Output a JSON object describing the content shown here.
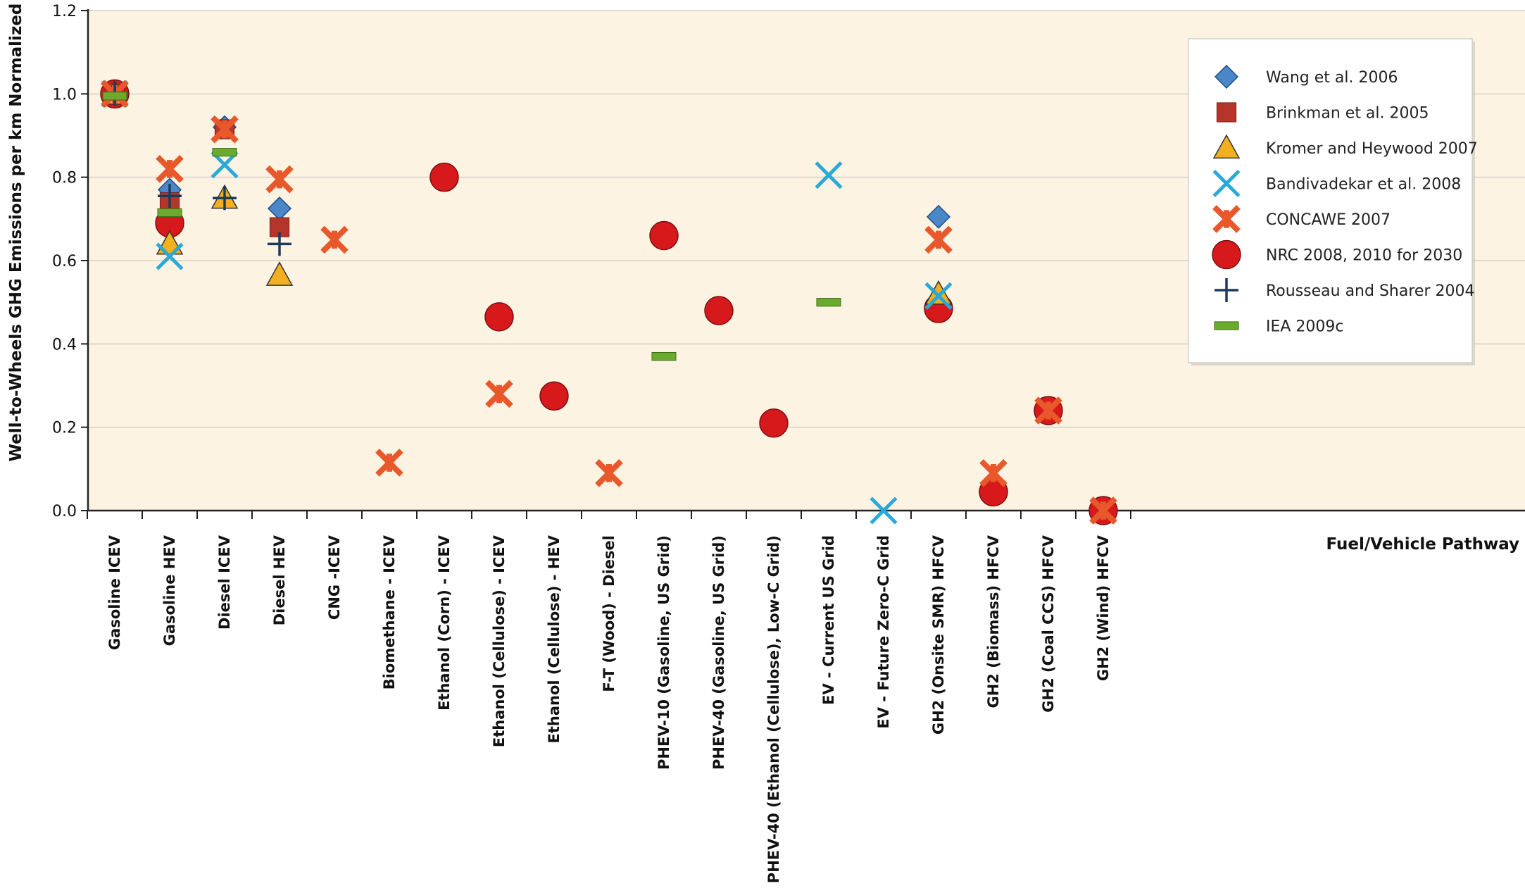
{
  "chart_data": {
    "type": "scatter",
    "ylabel": "Well-to-Wheels GHG Emissions per km Normalized",
    "xlabel": "Fuel/Vehicle Pathway",
    "ylim": [
      0,
      1.2
    ],
    "yticks": [
      "0.0",
      "0.2",
      "0.4",
      "0.6",
      "0.8",
      "1.0",
      "1.2"
    ],
    "grid": true,
    "legend_position": "top-right",
    "background_color": "#fdf3e3",
    "categories": [
      "Gasoline ICEV",
      "Gasoline HEV",
      "Diesel ICEV",
      "Diesel HEV",
      "CNG -ICEV",
      "Biomethane - ICEV",
      "Ethanol (Corn) - ICEV",
      "Ethanol (Cellulose) - ICEV",
      "Ethanol (Cellulose) - HEV",
      "F-T (Wood)  - Diesel",
      "PHEV-10 (Gasoline, US Grid)",
      "PHEV-40 (Gasoline,  US Grid)",
      "PHEV-40 (Ethanol (Cellulose), Low-C Grid)",
      "EV - Current US Grid",
      "EV - Future Zero-C Grid",
      "GH2 (Onsite SMR) HFCV",
      "GH2 (Biomass) HFCV",
      "GH2 (Coal CCS) HFCV",
      "GH2 (Wind) HFCV"
    ],
    "series": [
      {
        "name": "Wang et al. 2006",
        "marker": "diamond",
        "color": "#4a86c8",
        "points": [
          [
            0,
            1.0
          ],
          [
            1,
            0.77
          ],
          [
            2,
            0.92
          ],
          [
            3,
            0.725
          ],
          [
            15,
            0.705
          ]
        ]
      },
      {
        "name": "Brinkman et al. 2005",
        "marker": "square",
        "color": "#b5352a",
        "points": [
          [
            0,
            1.0
          ],
          [
            1,
            0.74
          ],
          [
            2,
            0.915
          ],
          [
            3,
            0.68
          ]
        ]
      },
      {
        "name": "Kromer and Heywood 2007",
        "marker": "triangle",
        "color": "#f2b01e",
        "points": [
          [
            0,
            1.0
          ],
          [
            1,
            0.64
          ],
          [
            2,
            0.75
          ],
          [
            3,
            0.565
          ],
          [
            15,
            0.52
          ]
        ]
      },
      {
        "name": "Bandivadekar et al. 2008",
        "marker": "x",
        "color": "#2aa9d8",
        "points": [
          [
            0,
            1.0
          ],
          [
            1,
            0.61
          ],
          [
            2,
            0.83
          ],
          [
            13,
            0.805
          ],
          [
            14,
            0.0
          ],
          [
            15,
            0.515
          ]
        ]
      },
      {
        "name": "CONCAWE 2007",
        "marker": "asterisk",
        "color": "#e8582b",
        "points": [
          [
            0,
            1.0
          ],
          [
            1,
            0.82
          ],
          [
            2,
            0.915
          ],
          [
            3,
            0.795
          ],
          [
            4,
            0.65
          ],
          [
            5,
            0.115
          ],
          [
            7,
            0.28
          ],
          [
            9,
            0.09
          ],
          [
            15,
            0.65
          ],
          [
            16,
            0.09
          ],
          [
            17,
            0.24
          ],
          [
            18,
            0.0
          ]
        ]
      },
      {
        "name": "NRC 2008, 2010 for 2030",
        "marker": "circle",
        "color": "#d7191c",
        "points": [
          [
            0,
            1.0
          ],
          [
            1,
            0.69
          ],
          [
            6,
            0.8
          ],
          [
            7,
            0.465
          ],
          [
            8,
            0.275
          ],
          [
            10,
            0.66
          ],
          [
            11,
            0.48
          ],
          [
            12,
            0.21
          ],
          [
            15,
            0.485
          ],
          [
            16,
            0.045
          ],
          [
            17,
            0.24
          ],
          [
            18,
            0.0
          ]
        ]
      },
      {
        "name": "Rousseau and Sharer 2004",
        "marker": "plus",
        "color": "#1c3a5e",
        "points": [
          [
            0,
            1.0
          ],
          [
            1,
            0.755
          ],
          [
            2,
            0.75
          ],
          [
            3,
            0.64
          ]
        ]
      },
      {
        "name": "IEA 2009c",
        "marker": "dash",
        "color": "#6aab2e",
        "points": [
          [
            0,
            0.995
          ],
          [
            1,
            0.715
          ],
          [
            2,
            0.86
          ],
          [
            10,
            0.37
          ],
          [
            13,
            0.5
          ]
        ]
      }
    ]
  }
}
